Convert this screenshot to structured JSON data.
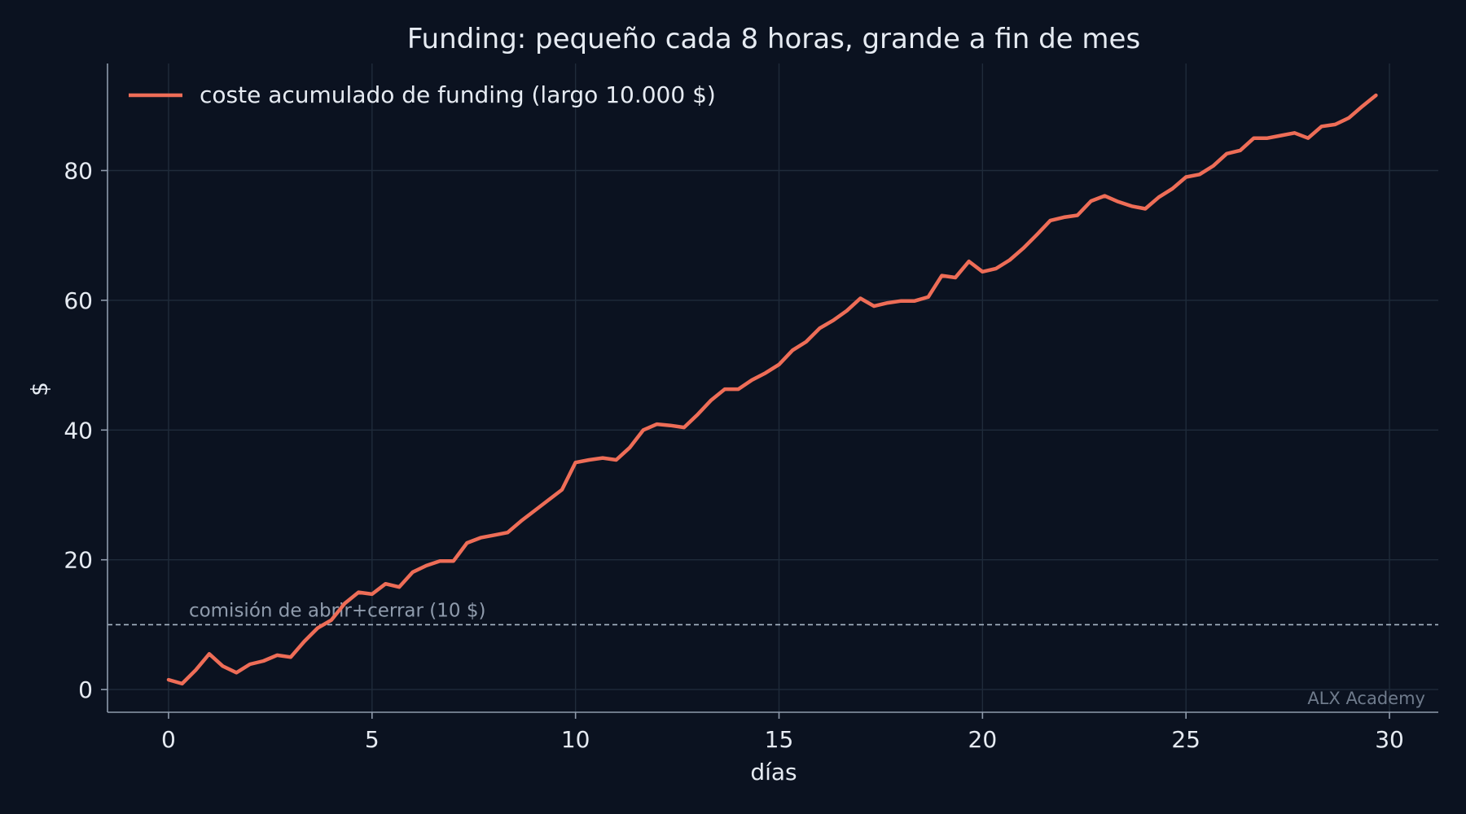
{
  "chart_data": {
    "type": "line",
    "title": "Funding: pequeño cada 8 horas, grande a fin de mes",
    "xlabel": "días",
    "ylabel": "$",
    "xlim": [
      -1.5,
      31.2
    ],
    "ylim": [
      -3.5,
      96.5
    ],
    "xticks": [
      0,
      5,
      10,
      15,
      20,
      25,
      30
    ],
    "yticks": [
      0,
      20,
      40,
      60,
      80
    ],
    "grid": true,
    "legend_position": "top-left",
    "watermark": "ALX Academy",
    "reference_line": {
      "y": 10,
      "label": "comisión de abrir+cerrar (10 $)",
      "color": "#a9b6c6"
    },
    "series": [
      {
        "name": "coste acumulado de funding (largo 10.000 $)",
        "color": "#ee6d57",
        "x": [
          0,
          0.333,
          0.667,
          1,
          1.333,
          1.667,
          2,
          2.333,
          2.667,
          3,
          3.333,
          3.667,
          4,
          4.333,
          4.667,
          5,
          5.333,
          5.667,
          6,
          6.333,
          6.667,
          7,
          7.333,
          7.667,
          8,
          8.333,
          8.667,
          9,
          9.333,
          9.667,
          10,
          10.333,
          10.667,
          11,
          11.333,
          11.667,
          12,
          12.333,
          12.667,
          13,
          13.333,
          13.667,
          14,
          14.333,
          14.667,
          15,
          15.333,
          15.667,
          16,
          16.333,
          16.667,
          17,
          17.333,
          17.667,
          18,
          18.333,
          18.667,
          19,
          19.333,
          19.667,
          20,
          20.333,
          20.667,
          21,
          21.333,
          21.667,
          22,
          22.333,
          22.667,
          23,
          23.333,
          23.667,
          24,
          24.333,
          24.667,
          25,
          25.333,
          25.667,
          26,
          26.333,
          26.667,
          27,
          27.333,
          27.667,
          28,
          28.333,
          28.667,
          29,
          29.333,
          29.667
        ],
        "y": [
          1.5,
          0.9,
          3.0,
          5.5,
          3.6,
          2.6,
          3.9,
          4.4,
          5.3,
          5.0,
          7.4,
          9.5,
          10.7,
          13.3,
          15.0,
          14.7,
          16.3,
          15.8,
          18.1,
          19.1,
          19.8,
          19.8,
          22.6,
          23.4,
          23.8,
          24.2,
          26.0,
          27.6,
          29.2,
          30.8,
          35.0,
          35.4,
          35.7,
          35.4,
          37.3,
          40.0,
          40.9,
          40.7,
          40.4,
          42.4,
          44.6,
          46.3,
          46.3,
          47.7,
          48.8,
          50.1,
          52.3,
          53.6,
          55.7,
          56.9,
          58.4,
          60.3,
          59.1,
          59.6,
          59.9,
          59.9,
          60.5,
          63.8,
          63.5,
          66.0,
          64.4,
          64.9,
          66.2,
          68.0,
          70.1,
          72.3,
          72.8,
          73.1,
          75.3,
          76.1,
          75.2,
          74.5,
          74.1,
          75.9,
          77.2,
          79.0,
          79.4,
          80.7,
          82.6,
          83.1,
          85.0,
          85.0,
          85.4,
          85.8,
          85.0,
          86.8,
          87.1,
          88.1,
          89.9,
          91.6
        ]
      }
    ]
  }
}
